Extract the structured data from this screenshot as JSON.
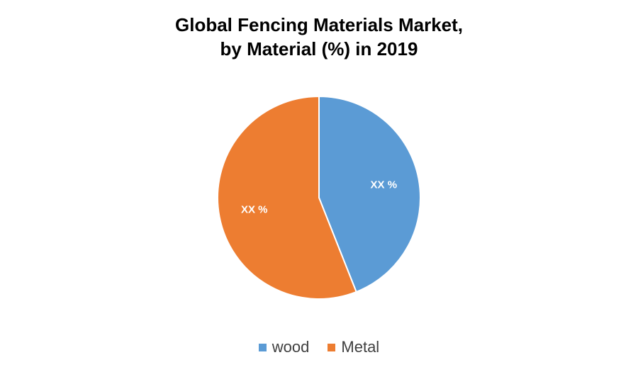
{
  "chart_data": {
    "type": "pie",
    "title_lines": [
      "Global Fencing Materials Market,",
      "by Material (%) in 2019"
    ],
    "slices": [
      {
        "name": "wood",
        "value": 44,
        "label": "XX %",
        "color": "#5B9BD5"
      },
      {
        "name": "Metal",
        "value": 56,
        "label": "XX %",
        "color": "#ED7D31"
      }
    ],
    "legend_position": "bottom",
    "start_angle_deg": 0,
    "direction": "clockwise"
  }
}
